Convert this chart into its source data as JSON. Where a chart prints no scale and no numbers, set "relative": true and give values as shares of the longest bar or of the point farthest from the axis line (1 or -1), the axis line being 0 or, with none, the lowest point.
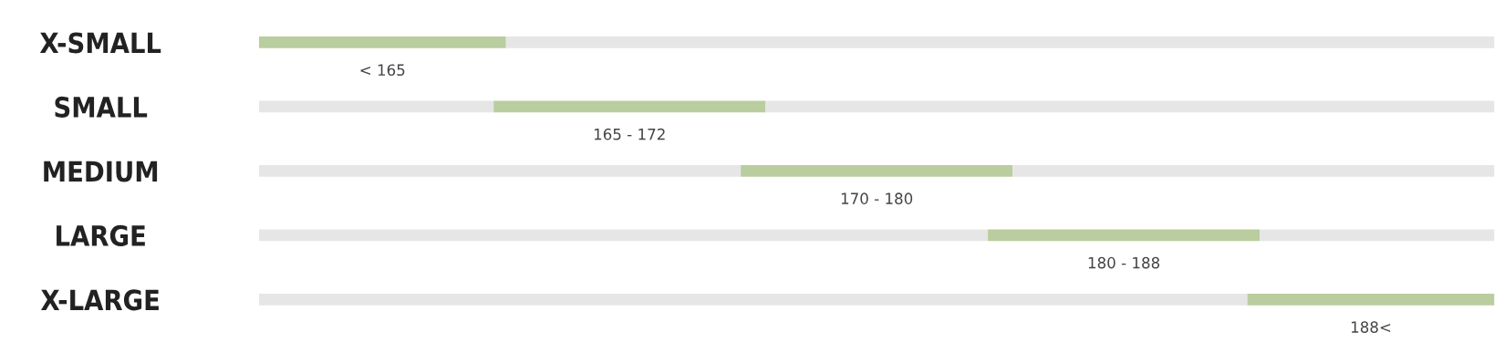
{
  "chart_data": {
    "type": "bar",
    "orientation": "horizontal",
    "stacked": true,
    "relative": true,
    "tick_labels": "y",
    "grid": false,
    "legend": false,
    "categories": [
      "X-SMALL",
      "SMALL",
      "MEDIUM",
      "LARGE",
      "X-LARGE"
    ],
    "series": [
      {
        "color": "#e6e6e6",
        "values": [
          0,
          0.19,
          0.39,
          0.59,
          0.8
        ]
      },
      {
        "color": "#bacd9f",
        "values": [
          0.2,
          0.22,
          0.22,
          0.22,
          0.2
        ]
      },
      {
        "color": "#e6e6e6",
        "values": [
          0.8,
          0.59,
          0.39,
          0.19,
          0
        ]
      }
    ],
    "annotations": [
      "< 165",
      "165 - 172",
      "170 - 180",
      "180 - 188",
      "188<"
    ]
  }
}
